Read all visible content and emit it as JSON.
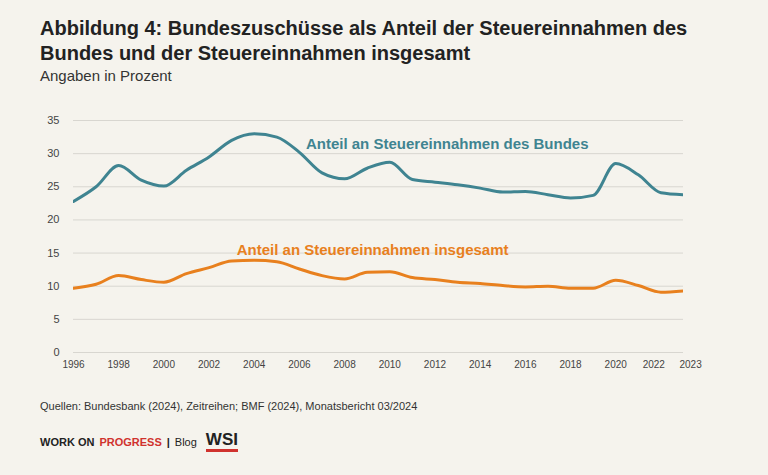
{
  "chart_data": {
    "type": "line",
    "title": "Abbildung 4: Bundeszuschüsse als Anteil der Steuereinnahmen des Bundes und der Steuereinnahmen insgesamt",
    "subtitle": "Angaben in Prozent",
    "source": "Quellen: Bundesbank (2024), Zeitreihen; BMF (2024), Monatsbericht 03/2024",
    "footer": {
      "brand": [
        "WORK ON",
        "PROGRESS"
      ],
      "separator": "|",
      "blog": "Blog",
      "logo": "WSI"
    },
    "x": [
      1996,
      1997,
      1998,
      1999,
      2000,
      2001,
      2002,
      2003,
      2004,
      2005,
      2006,
      2007,
      2008,
      2009,
      2010,
      2011,
      2012,
      2013,
      2014,
      2015,
      2016,
      2017,
      2018,
      2019,
      2020,
      2021,
      2022,
      2023
    ],
    "series": [
      {
        "name": "Anteil an Steuereinnahmen des Bundes",
        "color": "#3f8491",
        "values": [
          22.8,
          25.0,
          28.2,
          26.0,
          25.1,
          27.5,
          29.5,
          32.0,
          33.0,
          32.5,
          30.2,
          27.1,
          26.2,
          27.8,
          28.7,
          26.1,
          25.7,
          25.3,
          24.8,
          24.2,
          24.3,
          23.8,
          23.3,
          23.7,
          28.5,
          26.8,
          24.1,
          23.8
        ]
      },
      {
        "name": "Anteil an Steuereinnahmen insgesamt",
        "color": "#e8801e",
        "values": [
          9.7,
          10.3,
          11.6,
          11.0,
          10.6,
          11.9,
          12.8,
          13.8,
          13.9,
          13.7,
          12.6,
          11.6,
          11.1,
          12.1,
          12.2,
          11.3,
          11.0,
          10.6,
          10.4,
          10.1,
          9.9,
          10.0,
          9.7,
          9.7,
          10.9,
          10.1,
          9.1,
          9.3
        ]
      }
    ],
    "xlim": [
      1996,
      2023
    ],
    "xticks": [
      1996,
      1998,
      2000,
      2002,
      2004,
      2006,
      2008,
      2010,
      2012,
      2014,
      2016,
      2018,
      2020,
      2022,
      2023
    ],
    "ylim": [
      0,
      35
    ],
    "yticks": [
      0,
      5,
      10,
      15,
      20,
      25,
      30,
      35
    ],
    "grid": true
  }
}
